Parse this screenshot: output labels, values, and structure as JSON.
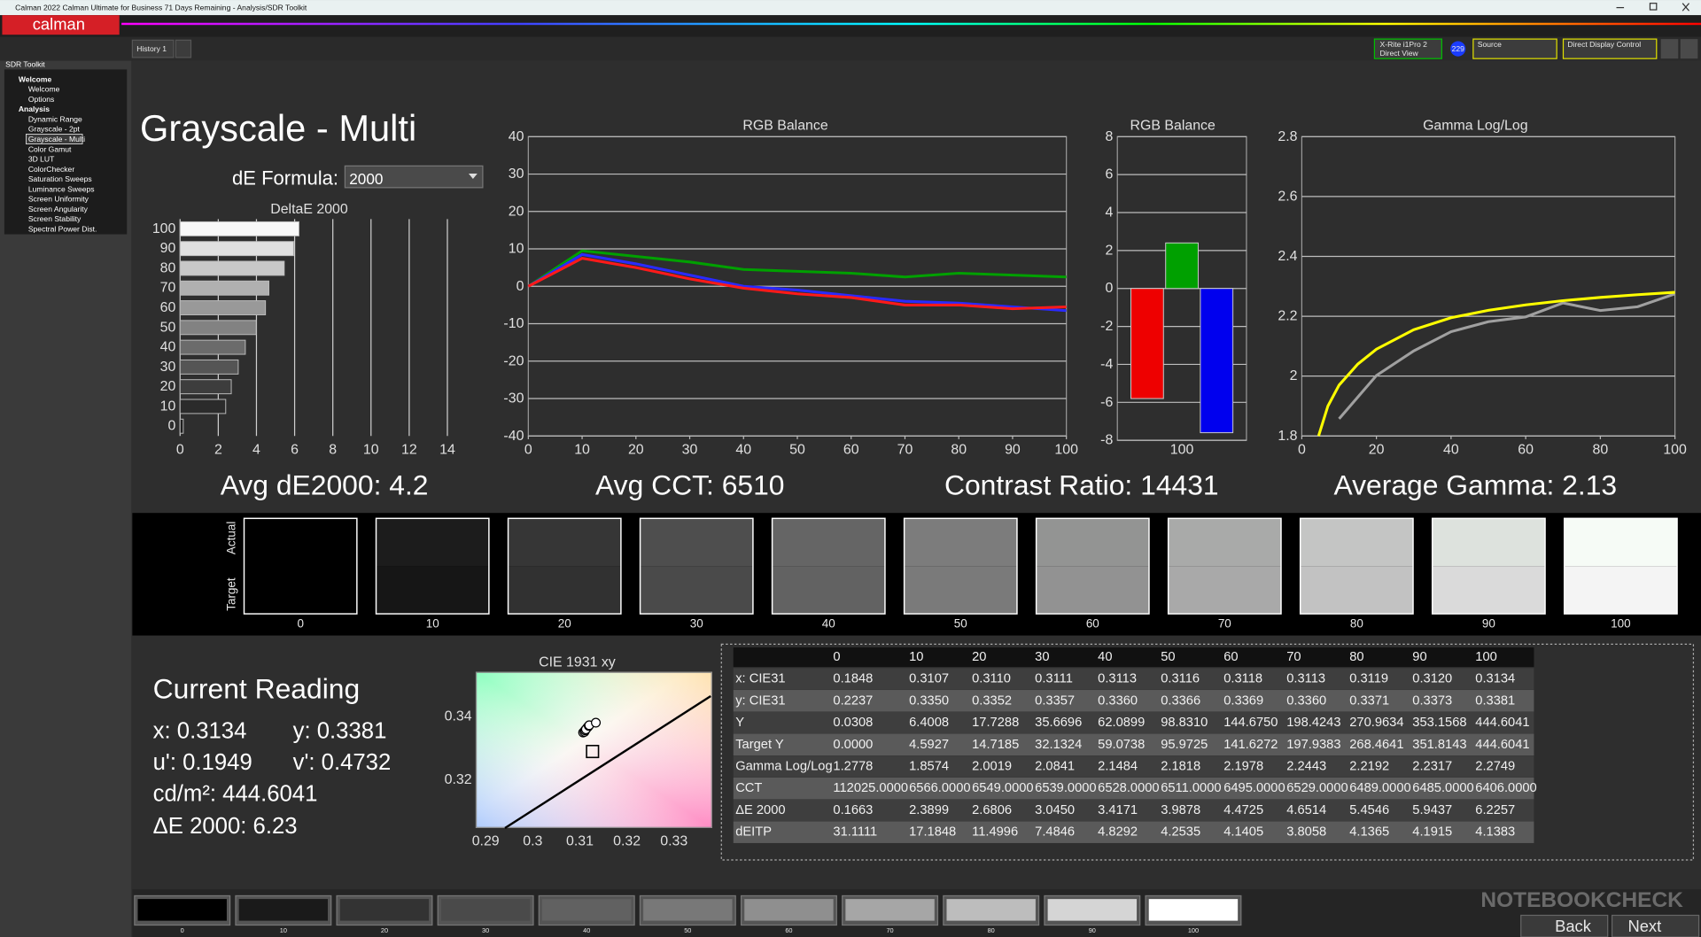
{
  "window": {
    "title": "Calman 2022 Calman Ultimate for Business 71 Days Remaining - Analysis/SDR Toolkit",
    "logo": "calman",
    "tab": "History 1",
    "meter": "X-Rite i1Pro 2",
    "meter_mode": "Direct View",
    "badge": "229",
    "source": "Source",
    "display": "Direct Display Control"
  },
  "sidebar": {
    "title": "SDR Toolkit",
    "selected": "Grayscale - Multi",
    "tree": [
      {
        "label": "Welcome",
        "children": [
          "Welcome",
          "Options"
        ]
      },
      {
        "label": "Analysis",
        "children": [
          "Dynamic Range",
          "Grayscale - 2pt",
          "Grayscale - Multi",
          "Color Gamut",
          "3D LUT",
          "ColorChecker",
          "Saturation Sweeps",
          "Luminance Sweeps",
          "Screen Uniformity",
          "Screen Angularity",
          "Screen Stability",
          "Spectral Power Dist."
        ]
      }
    ]
  },
  "header": {
    "title": "Grayscale - Multi",
    "formula_label": "dE Formula:",
    "formula_value": "2000"
  },
  "summary": [
    "Avg dE2000: 4.2",
    "Avg CCT: 6510",
    "Contrast Ratio: 14431",
    "Average Gamma: 2.13"
  ],
  "chart_data": [
    {
      "type": "hbar",
      "title": "DeltaE 2000",
      "categories": [
        "0",
        "10",
        "20",
        "30",
        "40",
        "50",
        "60",
        "70",
        "80",
        "90",
        "100"
      ],
      "values": [
        0.1663,
        2.3899,
        2.6806,
        3.045,
        3.4171,
        3.9878,
        4.4725,
        4.6514,
        5.4546,
        5.9437,
        6.2257
      ],
      "colors": [
        "#1e1e1e",
        "#2b2b2b",
        "#3d3d3d",
        "#555555",
        "#6b6b6b",
        "#828282",
        "#999999",
        "#b0b0b0",
        "#c8c8c8",
        "#e0e0e0",
        "#f8f8f8"
      ],
      "xlim": [
        0,
        15
      ],
      "xticks": [
        0,
        2,
        4,
        6,
        8,
        10,
        12,
        14
      ],
      "grid": "x"
    },
    {
      "type": "line",
      "title": "RGB Balance",
      "x": [
        0,
        10,
        20,
        30,
        40,
        50,
        60,
        70,
        80,
        90,
        100
      ],
      "xlim": [
        0,
        100
      ],
      "xticks": [
        0,
        10,
        20,
        30,
        40,
        50,
        60,
        70,
        80,
        90,
        100
      ],
      "ylim": [
        -40,
        40
      ],
      "yticks": [
        -40,
        -30,
        -20,
        -10,
        0,
        10,
        20,
        30,
        40
      ],
      "grid": "y",
      "series": [
        {
          "color": "#00a000",
          "values": [
            0,
            9.5,
            8,
            6.5,
            4.5,
            4,
            3.5,
            2.5,
            3.5,
            3,
            2.5
          ]
        },
        {
          "color": "#2a2aff",
          "values": [
            0,
            8.5,
            6,
            3,
            0,
            -1,
            -2.5,
            -4,
            -4.5,
            -5.5,
            -6.5
          ]
        },
        {
          "color": "#ff1a1a",
          "values": [
            0,
            7.5,
            5,
            2,
            -0.5,
            -2,
            -3,
            -5,
            -5,
            -6,
            -5.5
          ]
        }
      ]
    },
    {
      "type": "groupbar",
      "title": "RGB Balance",
      "categories": [
        "100"
      ],
      "ylim": [
        -8,
        8
      ],
      "yticks": [
        -8,
        -6,
        -4,
        -2,
        0,
        2,
        4,
        6,
        8
      ],
      "grid": "y",
      "series": [
        {
          "color": "#ee0000",
          "values": [
            -5.8
          ]
        },
        {
          "color": "#00a000",
          "values": [
            2.4
          ]
        },
        {
          "color": "#0000ee",
          "values": [
            -7.6
          ]
        }
      ]
    },
    {
      "type": "line",
      "title": "Gamma Log/Log",
      "xlim": [
        0,
        100
      ],
      "xticks": [
        0,
        20,
        40,
        60,
        80,
        100
      ],
      "ylim": [
        1.8,
        2.8
      ],
      "yticks": [
        1.8,
        2,
        2.2,
        2.4,
        2.6,
        2.8
      ],
      "grid": "y",
      "series": [
        {
          "color": "#a0a0a0",
          "x": [
            10,
            20,
            30,
            40,
            50,
            60,
            70,
            80,
            90,
            100
          ],
          "values": [
            1.8574,
            2.0019,
            2.0841,
            2.1484,
            2.1818,
            2.1978,
            2.2443,
            2.2192,
            2.2317,
            2.2749
          ]
        },
        {
          "color": "#ffff00",
          "x": [
            4.5,
            7,
            10,
            15,
            20,
            30,
            40,
            50,
            60,
            70,
            80,
            90,
            100
          ],
          "values": [
            1.8,
            1.9,
            1.97,
            2.04,
            2.09,
            2.155,
            2.195,
            2.22,
            2.238,
            2.252,
            2.263,
            2.272,
            2.28
          ]
        }
      ]
    },
    {
      "type": "scatter",
      "title": "CIE 1931 xy",
      "xlim": [
        0.288,
        0.338
      ],
      "xticks": [
        0.29,
        0.3,
        0.31,
        0.32,
        0.33
      ],
      "ylim": [
        0.305,
        0.354
      ],
      "yticks": [
        0.32,
        0.34
      ],
      "series": [
        {
          "marker": "line",
          "color": "#000000",
          "x": [
            0.2941,
            0.3378
          ],
          "y": [
            0.3048,
            0.3465
          ]
        },
        {
          "marker": "square",
          "color": "#000000",
          "x": [
            0.3127
          ],
          "y": [
            0.329
          ]
        },
        {
          "marker": "circle",
          "color": "#ffffff",
          "x": [
            0.3107,
            0.311,
            0.3111,
            0.3113,
            0.3116,
            0.3118,
            0.3113,
            0.3119,
            0.312,
            0.3134
          ],
          "y": [
            0.335,
            0.3352,
            0.3357,
            0.336,
            0.3366,
            0.3369,
            0.336,
            0.3371,
            0.3373,
            0.3381
          ]
        }
      ]
    }
  ],
  "swatches": {
    "actual_label": "Actual",
    "target_label": "Target",
    "labels": [
      "0",
      "10",
      "20",
      "30",
      "40",
      "50",
      "60",
      "70",
      "80",
      "90",
      "100"
    ],
    "actual": [
      "#000000",
      "#1c1c1c",
      "#363636",
      "#4e4e4e",
      "#656565",
      "#7c7c7c",
      "#939493",
      "#a9aaa9",
      "#c4c5c4",
      "#dde2dd",
      "#f6fbf6"
    ],
    "target": [
      "#000000",
      "#161616",
      "#313131",
      "#4a4a4a",
      "#626262",
      "#7a7a7a",
      "#929292",
      "#a9a9a9",
      "#c2c2c2",
      "#dadada",
      "#f4f4f4"
    ]
  },
  "current_reading": {
    "title": "Current Reading",
    "items": [
      "x: 0.3134",
      "y: 0.3381",
      "u': 0.1949",
      "v': 0.4732",
      "cd/m²: 444.6041",
      "ΔE 2000: 6.23"
    ]
  },
  "table": {
    "header": [
      "0",
      "10",
      "20",
      "30",
      "40",
      "50",
      "60",
      "70",
      "80",
      "90",
      "100"
    ],
    "rows": [
      [
        "x: CIE31",
        "0.1848",
        "0.3107",
        "0.3110",
        "0.3111",
        "0.3113",
        "0.3116",
        "0.3118",
        "0.3113",
        "0.3119",
        "0.3120",
        "0.3134"
      ],
      [
        "y: CIE31",
        "0.2237",
        "0.3350",
        "0.3352",
        "0.3357",
        "0.3360",
        "0.3366",
        "0.3369",
        "0.3360",
        "0.3371",
        "0.3373",
        "0.3381"
      ],
      [
        "Y",
        "0.0308",
        "6.4008",
        "17.7288",
        "35.6696",
        "62.0899",
        "98.8310",
        "144.6750",
        "198.4243",
        "270.9634",
        "353.1568",
        "444.6041"
      ],
      [
        "Target Y",
        "0.0000",
        "4.5927",
        "14.7185",
        "32.1324",
        "59.0738",
        "95.9725",
        "141.6272",
        "197.9383",
        "268.4641",
        "351.8143",
        "444.6041"
      ],
      [
        "Gamma Log/Log",
        "1.2778",
        "1.8574",
        "2.0019",
        "2.0841",
        "2.1484",
        "2.1818",
        "2.1978",
        "2.2443",
        "2.2192",
        "2.2317",
        "2.2749"
      ],
      [
        "CCT",
        "112025.0000",
        "6566.0000",
        "6549.0000",
        "6539.0000",
        "6528.0000",
        "6511.0000",
        "6495.0000",
        "6529.0000",
        "6489.0000",
        "6485.0000",
        "6406.0000"
      ],
      [
        "ΔE 2000",
        "0.1663",
        "2.3899",
        "2.6806",
        "3.0450",
        "3.4171",
        "3.9878",
        "4.4725",
        "4.6514",
        "5.4546",
        "5.9437",
        "6.2257"
      ],
      [
        "dEITP",
        "31.1111",
        "17.1848",
        "11.4996",
        "7.4846",
        "4.8292",
        "4.2535",
        "4.1405",
        "3.8058",
        "4.1365",
        "4.1915",
        "4.1383"
      ]
    ]
  },
  "footer": {
    "buttons": [
      "0",
      "10",
      "20",
      "30",
      "40",
      "50",
      "60",
      "70",
      "80",
      "90",
      "100"
    ],
    "button_colors": [
      "#000000",
      "#1a1a1a",
      "#333333",
      "#4a4a4a",
      "#616161",
      "#787878",
      "#8f8f8f",
      "#a6a6a6",
      "#bdbdbd",
      "#d5d5d5",
      "#ffffff"
    ],
    "back": "Back",
    "next": "Next"
  },
  "watermark": "NOTEBOOKCHECK"
}
